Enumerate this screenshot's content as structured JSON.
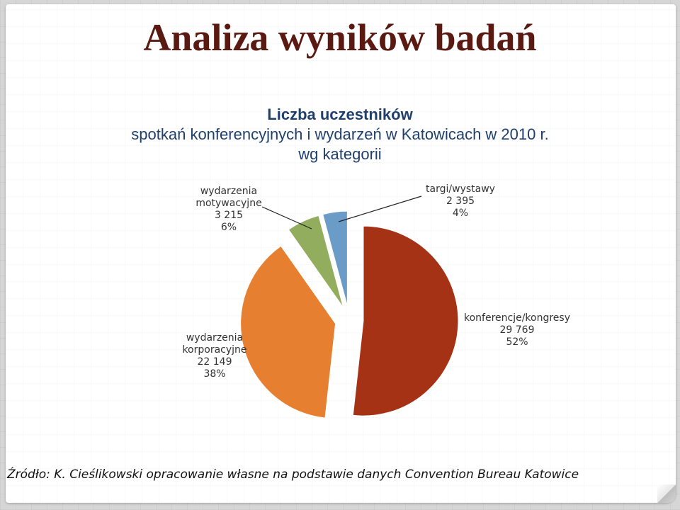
{
  "slide": {
    "title": "Analiza wyników badań",
    "source": "Źródło: K. Cieślikowski opracowanie własne na podstawie danych Convention Bureau Katowice"
  },
  "chart_data": {
    "type": "pie",
    "title_lines": [
      "Liczba uczestników",
      "spotkań konferencyjnych i wydarzeń w Katowicach w 2010 r.",
      "wg kategorii"
    ],
    "slices": [
      {
        "name": "konferencje/kongresy",
        "value_label": "29 769",
        "value": 29769,
        "percent": "52%",
        "color": "#a63215"
      },
      {
        "name": "wydarzenia korporacyjne",
        "name_lines": [
          "wydarzenia",
          "korporacyjne"
        ],
        "value_label": "22 149",
        "value": 22149,
        "percent": "38%",
        "color": "#e67f30"
      },
      {
        "name": "wydarzenia motywacyjne",
        "name_lines": [
          "wydarzenia",
          "motywacyjne"
        ],
        "value_label": "3 215",
        "value": 3215,
        "percent": "6%",
        "color": "#93ad5f"
      },
      {
        "name": "targi/wystawy",
        "value_label": "2 395",
        "value": 2395,
        "percent": "4%",
        "color": "#6b9bc7"
      }
    ]
  }
}
